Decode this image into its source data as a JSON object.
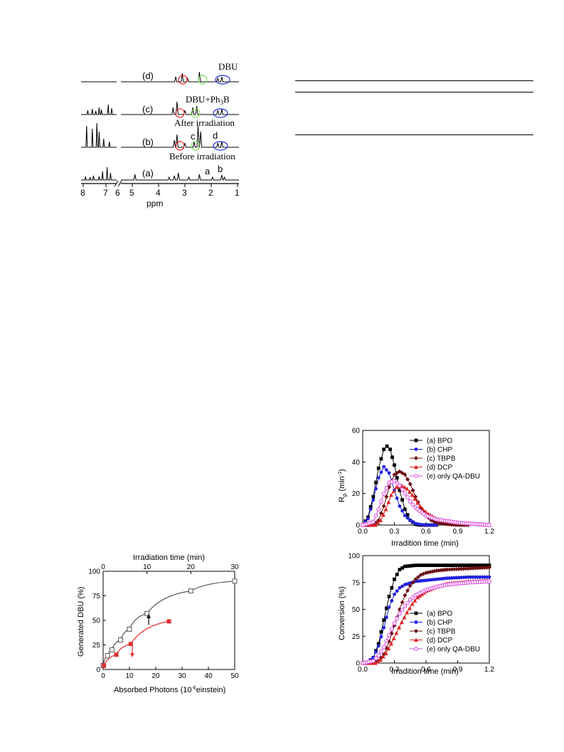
{
  "nmr": {
    "type": "nmr-spectra",
    "xlabel": "ppm",
    "x_ticks_left": [
      "8",
      "7",
      "6"
    ],
    "x_ticks_right": [
      "5",
      "4",
      "3",
      "2",
      "1"
    ],
    "traces": [
      {
        "id": "d",
        "label": "(d)",
        "title": "DBU"
      },
      {
        "id": "c",
        "label": "(c)",
        "title": "DBU+Ph3B",
        "title_main": "DBU+Ph",
        "title_sub": "3",
        "title_end": "B"
      },
      {
        "id": "b",
        "label": "(b)",
        "title": "After irradiation"
      },
      {
        "id": "a",
        "label": "(a)",
        "title": "Before irradiation"
      }
    ],
    "peak_letters": {
      "a": "a",
      "b": "b",
      "c": "c",
      "d": "d"
    },
    "colors": {
      "red_circle": "#e02020",
      "green_circle": "#7ed957",
      "blue_circle": "#2030d0",
      "spectrum": "#000000"
    }
  },
  "dbu_chart": {
    "chart_data": {
      "type": "scatter",
      "xlabel": "Absorbed Photons (10",
      "xlabel_sup": "-6",
      "xlabel_end": "einstein)",
      "x2label": "Irradiation time (min)",
      "ylabel": "Generated DBU (%)",
      "xlim": [
        0,
        50
      ],
      "x2lim": [
        0,
        30
      ],
      "ylim": [
        0,
        100
      ],
      "x_ticks": [
        "0",
        "10",
        "20",
        "30",
        "40",
        "50"
      ],
      "x2_ticks": [
        "0",
        "10",
        "20",
        "30"
      ],
      "y_ticks": [
        "0",
        "25",
        "50",
        "75",
        "100"
      ],
      "series": [
        {
          "axis": "top",
          "marker": "open-square",
          "color": "#555555",
          "x": [
            0,
            1,
            2,
            4,
            6,
            10,
            20,
            30
          ],
          "y": [
            4,
            14,
            20,
            30,
            41,
            57,
            80,
            90
          ]
        },
        {
          "axis": "bottom",
          "marker": "filled-square",
          "color": "#e03030",
          "x": [
            0.3,
            5,
            10.5,
            25
          ],
          "y": [
            4,
            15,
            26,
            49
          ]
        }
      ]
    }
  },
  "rp_chart": {
    "chart_data": {
      "type": "line",
      "xlabel": "Irradition time (min)",
      "ylabel": "R",
      "ylabel_sub": "p",
      "ylabel_end": " (min",
      "ylabel_sup": "-1",
      "ylabel_close": ")",
      "xlim": [
        0,
        1.2
      ],
      "ylim": [
        0,
        60
      ],
      "x_ticks": [
        "0.0",
        "0.3",
        "0.6",
        "0.9",
        "1.2"
      ],
      "y_ticks": [
        "0",
        "20",
        "40",
        "60"
      ],
      "legend": "top-right",
      "series": [
        {
          "name": "(a) BPO",
          "color": "#000000",
          "marker": "square",
          "x": [
            0.0,
            0.05,
            0.1,
            0.15,
            0.2,
            0.23,
            0.26,
            0.3,
            0.35,
            0.4,
            0.45,
            0.5,
            0.55,
            0.6,
            0.7
          ],
          "y": [
            0,
            5,
            18,
            36,
            48,
            50,
            48,
            38,
            22,
            10,
            3,
            0.5,
            0,
            0,
            0
          ]
        },
        {
          "name": "(b) CHP",
          "color": "#2222dd",
          "marker": "circle",
          "x": [
            0.0,
            0.05,
            0.1,
            0.15,
            0.2,
            0.25,
            0.3,
            0.35,
            0.4,
            0.45,
            0.5,
            0.55,
            0.6,
            0.7
          ],
          "y": [
            0,
            4,
            16,
            30,
            37,
            33,
            22,
            12,
            6,
            3,
            1,
            0.3,
            0,
            0
          ]
        },
        {
          "name": "(c) TBPB",
          "color": "#6b0f0f",
          "marker": "diamond",
          "x": [
            0.0,
            0.1,
            0.15,
            0.2,
            0.25,
            0.3,
            0.35,
            0.4,
            0.45,
            0.5,
            0.55,
            0.6,
            0.65,
            0.7,
            0.8,
            0.9,
            1.0
          ],
          "y": [
            0,
            0,
            3,
            12,
            24,
            32,
            34,
            32,
            26,
            18,
            11,
            6,
            3,
            1.5,
            0.5,
            0,
            0
          ]
        },
        {
          "name": "(d) DCP",
          "color": "#dd2222",
          "marker": "triangle",
          "x": [
            0.0,
            0.12,
            0.17,
            0.22,
            0.27,
            0.32,
            0.37,
            0.42,
            0.47,
            0.52,
            0.57,
            0.62,
            0.7,
            0.8,
            0.9,
            1.0,
            1.1,
            1.2
          ],
          "y": [
            0,
            0,
            3,
            10,
            19,
            24,
            25,
            23,
            19,
            14,
            10,
            7,
            4,
            2.5,
            1.5,
            1,
            0.5,
            0
          ]
        },
        {
          "name": "(e) only QA-DBU",
          "color": "#dd44dd",
          "marker": "open-circle",
          "x": [
            0.0,
            0.1,
            0.15,
            0.2,
            0.25,
            0.3,
            0.35,
            0.4,
            0.45,
            0.5,
            0.6,
            0.7,
            0.8,
            0.9,
            1.0,
            1.1,
            1.2
          ],
          "y": [
            0,
            2,
            10,
            20,
            27,
            28,
            25,
            20,
            15,
            11,
            6,
            3.5,
            2.5,
            1.5,
            1,
            0.5,
            0
          ]
        }
      ]
    }
  },
  "conv_chart": {
    "chart_data": {
      "type": "line",
      "xlabel": "Irradition time (min)",
      "ylabel": "Conversion (%)",
      "xlim": [
        0,
        1.2
      ],
      "ylim": [
        0,
        100
      ],
      "x_ticks": [
        "0.0",
        "0.3",
        "0.6",
        "0.9",
        "1.2"
      ],
      "y_ticks": [
        "0",
        "25",
        "50",
        "75",
        "100"
      ],
      "legend": "bottom-right",
      "series": [
        {
          "name": "(a) BPO",
          "color": "#000000",
          "marker": "square",
          "x": [
            0.0,
            0.05,
            0.1,
            0.15,
            0.2,
            0.25,
            0.3,
            0.35,
            0.4,
            0.5,
            0.6,
            0.8,
            1.0,
            1.2
          ],
          "y": [
            0,
            1,
            5,
            18,
            40,
            62,
            78,
            87,
            90,
            91,
            91,
            91,
            91,
            91
          ]
        },
        {
          "name": "(b) CHP",
          "color": "#2222dd",
          "marker": "circle",
          "x": [
            0.0,
            0.05,
            0.1,
            0.15,
            0.2,
            0.25,
            0.3,
            0.35,
            0.4,
            0.5,
            0.6,
            0.8,
            1.0,
            1.2
          ],
          "y": [
            0,
            1,
            5,
            16,
            33,
            52,
            64,
            70,
            73,
            76,
            77,
            79,
            80,
            80
          ]
        },
        {
          "name": "(c) TBPB",
          "color": "#6b0f0f",
          "marker": "diamond",
          "x": [
            0.0,
            0.1,
            0.15,
            0.2,
            0.25,
            0.3,
            0.35,
            0.4,
            0.45,
            0.5,
            0.55,
            0.6,
            0.7,
            0.8,
            1.0,
            1.2
          ],
          "y": [
            0,
            0,
            2,
            8,
            20,
            35,
            50,
            63,
            72,
            78,
            82,
            84,
            86,
            87,
            88,
            89
          ]
        },
        {
          "name": "(d) DCP",
          "color": "#dd2222",
          "marker": "triangle",
          "x": [
            0.0,
            0.12,
            0.17,
            0.22,
            0.27,
            0.32,
            0.37,
            0.42,
            0.47,
            0.52,
            0.6,
            0.7,
            0.8,
            0.9,
            1.0,
            1.2
          ],
          "y": [
            0,
            0,
            3,
            9,
            18,
            28,
            38,
            47,
            55,
            61,
            67,
            71,
            74,
            75,
            76,
            77
          ]
        },
        {
          "name": "(e) only QA-DBU",
          "color": "#dd44dd",
          "marker": "open-circle",
          "x": [
            0.0,
            0.1,
            0.15,
            0.2,
            0.25,
            0.3,
            0.35,
            0.4,
            0.45,
            0.5,
            0.6,
            0.7,
            0.8,
            0.9,
            1.0,
            1.2
          ],
          "y": [
            0,
            2,
            7,
            15,
            26,
            37,
            46,
            53,
            59,
            63,
            68,
            71,
            73,
            74,
            75,
            76
          ]
        }
      ]
    }
  }
}
